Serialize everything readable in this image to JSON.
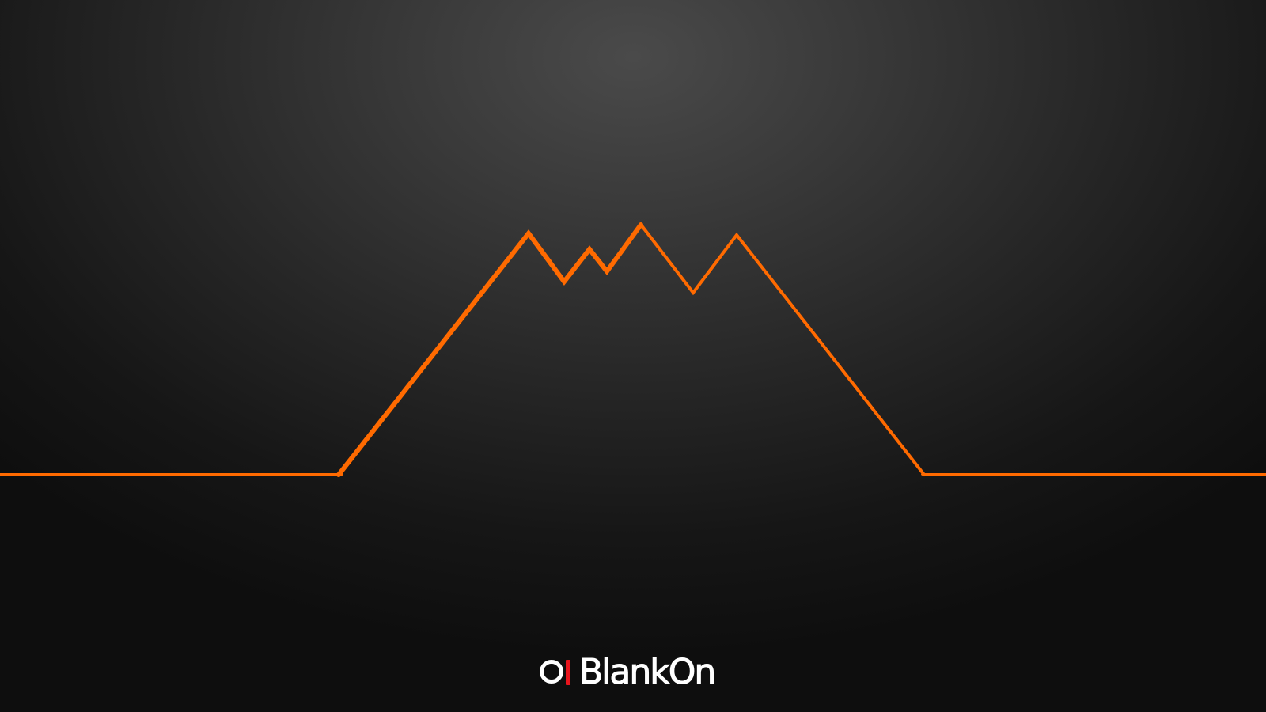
{
  "desktop": {
    "wallpaper_name": "blankon-mountain-wallpaper",
    "line_color": "#ff6a00",
    "background_center_color": "#4a4a4a",
    "background_edge_color": "#0e0e0e"
  },
  "brand": {
    "name": "BlankOn",
    "mark_bar_color": "#e8141c",
    "text_color": "#ffffff",
    "icon": "blankon-logo-icon"
  }
}
